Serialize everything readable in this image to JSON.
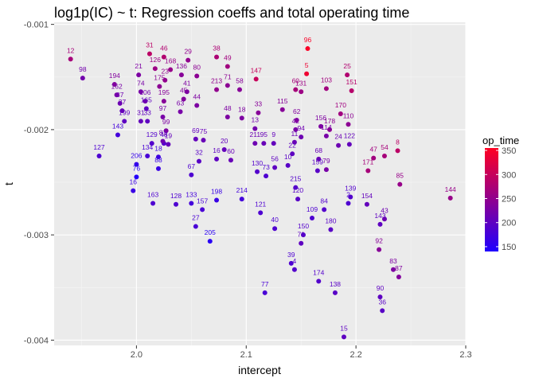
{
  "chart_data": {
    "type": "scatter",
    "title": "log1p(IC) ~ t: Regression coeffs and total operating time",
    "xlabel": "intercept",
    "ylabel": "t",
    "xlim": [
      1.925,
      2.3
    ],
    "ylim": [
      -0.00405,
      -0.00098
    ],
    "x_ticks": [
      2.0,
      2.1,
      2.2,
      2.3
    ],
    "x_tick_labels": [
      "2.0",
      "2.1",
      "2.2",
      "2.3"
    ],
    "y_ticks": [
      -0.004,
      -0.003,
      -0.002,
      -0.001
    ],
    "y_tick_labels": [
      "-0.004",
      "-0.003",
      "-0.002",
      "-0.001"
    ],
    "grid": true,
    "legend": {
      "title": "op_time",
      "position": "right",
      "ticks": [
        150,
        200,
        250,
        300,
        350
      ],
      "range": [
        140,
        355
      ],
      "color_low": "#1f00ff",
      "color_high": "#ff0022"
    },
    "points": [
      {
        "label": "12",
        "x": 1.94,
        "y": -0.00133,
        "c": 270
      },
      {
        "label": "98",
        "x": 1.951,
        "y": -0.00151,
        "c": 220
      },
      {
        "label": "194",
        "x": 1.98,
        "y": -0.00157,
        "c": 235
      },
      {
        "label": "162",
        "x": 1.982,
        "y": -0.00167,
        "c": 225
      },
      {
        "label": "87",
        "x": 1.985,
        "y": -0.00175,
        "c": 215
      },
      {
        "label": "37",
        "x": 1.987,
        "y": -0.00182,
        "c": 210
      },
      {
        "label": "199",
        "x": 1.989,
        "y": -0.00192,
        "c": 200
      },
      {
        "label": "143",
        "x": 1.983,
        "y": -0.00205,
        "c": 175
      },
      {
        "label": "127",
        "x": 1.966,
        "y": -0.00225,
        "c": 185
      },
      {
        "label": "206",
        "x": 2.0,
        "y": -0.00233,
        "c": 160
      },
      {
        "label": "76",
        "x": 2.0,
        "y": -0.00245,
        "c": 145
      },
      {
        "label": "16",
        "x": 1.997,
        "y": -0.00258,
        "c": 165
      },
      {
        "label": "21",
        "x": 2.002,
        "y": -0.00148,
        "c": 230
      },
      {
        "label": "74",
        "x": 2.004,
        "y": -0.00164,
        "c": 225
      },
      {
        "label": "106",
        "x": 2.008,
        "y": -0.00173,
        "c": 220
      },
      {
        "label": "165",
        "x": 2.009,
        "y": -0.0018,
        "c": 200
      },
      {
        "label": "31",
        "x": 2.004,
        "y": -0.00192,
        "c": 205
      },
      {
        "label": "33",
        "x": 2.01,
        "y": -0.00192,
        "c": 200
      },
      {
        "label": "129",
        "x": 2.014,
        "y": -0.00213,
        "c": 190
      },
      {
        "label": "134",
        "x": 2.01,
        "y": -0.00225,
        "c": 180
      },
      {
        "label": "48",
        "x": 2.025,
        "y": -0.00213,
        "c": 190
      },
      {
        "label": "18",
        "x": 2.02,
        "y": -0.00226,
        "c": 170
      },
      {
        "label": "88",
        "x": 2.02,
        "y": -0.00237,
        "c": 165
      },
      {
        "label": "163",
        "x": 2.015,
        "y": -0.0027,
        "c": 185
      },
      {
        "label": "128",
        "x": 2.036,
        "y": -0.00271,
        "c": 185
      },
      {
        "label": "31",
        "x": 2.012,
        "y": -0.00128,
        "c": 290
      },
      {
        "label": "46",
        "x": 2.025,
        "y": -0.00131,
        "c": 280
      },
      {
        "label": "126",
        "x": 2.017,
        "y": -0.00142,
        "c": 260
      },
      {
        "label": "168",
        "x": 2.031,
        "y": -0.00143,
        "c": 255
      },
      {
        "label": "23",
        "x": 2.026,
        "y": -0.00153,
        "c": 250
      },
      {
        "label": "175",
        "x": 2.021,
        "y": -0.00159,
        "c": 245
      },
      {
        "label": "195",
        "x": 2.025,
        "y": -0.00173,
        "c": 240
      },
      {
        "label": "97",
        "x": 2.024,
        "y": -0.00188,
        "c": 225
      },
      {
        "label": "99",
        "x": 2.027,
        "y": -0.00201,
        "c": 230
      },
      {
        "label": "81",
        "x": 2.024,
        "y": -0.00211,
        "c": 215
      },
      {
        "label": "19",
        "x": 2.029,
        "y": -0.00214,
        "c": 205
      },
      {
        "label": "29",
        "x": 2.047,
        "y": -0.00134,
        "c": 250
      },
      {
        "label": "136",
        "x": 2.041,
        "y": -0.00148,
        "c": 240
      },
      {
        "label": "80",
        "x": 2.055,
        "y": -0.00149,
        "c": 245
      },
      {
        "label": "45",
        "x": 2.043,
        "y": -0.00171,
        "c": 235
      },
      {
        "label": "41",
        "x": 2.046,
        "y": -0.00164,
        "c": 230
      },
      {
        "label": "63",
        "x": 2.04,
        "y": -0.00183,
        "c": 225
      },
      {
        "label": "44",
        "x": 2.055,
        "y": -0.00177,
        "c": 230
      },
      {
        "label": "69",
        "x": 2.054,
        "y": -0.00209,
        "c": 205
      },
      {
        "label": "75",
        "x": 2.061,
        "y": -0.0021,
        "c": 210
      },
      {
        "label": "32",
        "x": 2.057,
        "y": -0.0023,
        "c": 195
      },
      {
        "label": "67",
        "x": 2.05,
        "y": -0.00243,
        "c": 185
      },
      {
        "label": "133",
        "x": 2.05,
        "y": -0.0027,
        "c": 175
      },
      {
        "label": "157",
        "x": 2.06,
        "y": -0.00276,
        "c": 180
      },
      {
        "label": "27",
        "x": 2.054,
        "y": -0.00292,
        "c": 180
      },
      {
        "label": "205",
        "x": 2.067,
        "y": -0.00306,
        "c": 150
      },
      {
        "label": "198",
        "x": 2.073,
        "y": -0.00267,
        "c": 165
      },
      {
        "label": "38",
        "x": 2.073,
        "y": -0.00131,
        "c": 275
      },
      {
        "label": "49",
        "x": 2.083,
        "y": -0.0014,
        "c": 265
      },
      {
        "label": "71",
        "x": 2.083,
        "y": -0.00158,
        "c": 245
      },
      {
        "label": "213",
        "x": 2.073,
        "y": -0.00162,
        "c": 250
      },
      {
        "label": "58",
        "x": 2.094,
        "y": -0.00162,
        "c": 240
      },
      {
        "label": "48",
        "x": 2.083,
        "y": -0.00188,
        "c": 230
      },
      {
        "label": "18",
        "x": 2.096,
        "y": -0.00189,
        "c": 230
      },
      {
        "label": "20",
        "x": 2.08,
        "y": -0.00219,
        "c": 205
      },
      {
        "label": "16",
        "x": 2.073,
        "y": -0.00228,
        "c": 200
      },
      {
        "label": "60",
        "x": 2.086,
        "y": -0.00229,
        "c": 210
      },
      {
        "label": "214",
        "x": 2.096,
        "y": -0.00266,
        "c": 175
      },
      {
        "label": "147",
        "x": 2.109,
        "y": -0.00152,
        "c": 300
      },
      {
        "label": "33",
        "x": 2.111,
        "y": -0.00184,
        "c": 240
      },
      {
        "label": "13",
        "x": 2.108,
        "y": -0.00199,
        "c": 220
      },
      {
        "label": "211",
        "x": 2.108,
        "y": -0.00213,
        "c": 215
      },
      {
        "label": "95",
        "x": 2.116,
        "y": -0.00213,
        "c": 210
      },
      {
        "label": "9",
        "x": 2.125,
        "y": -0.00213,
        "c": 205
      },
      {
        "label": "130",
        "x": 2.11,
        "y": -0.0024,
        "c": 190
      },
      {
        "label": "73",
        "x": 2.118,
        "y": -0.00244,
        "c": 185
      },
      {
        "label": "56",
        "x": 2.126,
        "y": -0.00236,
        "c": 200
      },
      {
        "label": "115",
        "x": 2.133,
        "y": -0.00181,
        "c": 240
      },
      {
        "label": "121",
        "x": 2.113,
        "y": -0.00279,
        "c": 185
      },
      {
        "label": "40",
        "x": 2.126,
        "y": -0.00294,
        "c": 185
      },
      {
        "label": "77",
        "x": 2.117,
        "y": -0.00355,
        "c": 180
      },
      {
        "label": "96",
        "x": 2.156,
        "y": -0.00123,
        "c": 350
      },
      {
        "label": "5",
        "x": 2.155,
        "y": -0.00147,
        "c": 340
      },
      {
        "label": "60",
        "x": 2.145,
        "y": -0.00162,
        "c": 270
      },
      {
        "label": "131",
        "x": 2.15,
        "y": -0.00164,
        "c": 260
      },
      {
        "label": "62",
        "x": 2.146,
        "y": -0.00191,
        "c": 235
      },
      {
        "label": "42",
        "x": 2.145,
        "y": -0.002,
        "c": 225
      },
      {
        "label": "94",
        "x": 2.15,
        "y": -0.00207,
        "c": 215
      },
      {
        "label": "11",
        "x": 2.144,
        "y": -0.00212,
        "c": 210
      },
      {
        "label": "22",
        "x": 2.142,
        "y": -0.00223,
        "c": 200
      },
      {
        "label": "10",
        "x": 2.138,
        "y": -0.00234,
        "c": 195
      },
      {
        "label": "215",
        "x": 2.145,
        "y": -0.00255,
        "c": 190
      },
      {
        "label": "120",
        "x": 2.147,
        "y": -0.00266,
        "c": 195
      },
      {
        "label": "150",
        "x": 2.152,
        "y": -0.003,
        "c": 190
      },
      {
        "label": "70",
        "x": 2.15,
        "y": -0.00308,
        "c": 200
      },
      {
        "label": "39",
        "x": 2.141,
        "y": -0.00327,
        "c": 185
      },
      {
        "label": "4",
        "x": 2.144,
        "y": -0.00333,
        "c": 190
      },
      {
        "label": "103",
        "x": 2.173,
        "y": -0.00161,
        "c": 265
      },
      {
        "label": "25",
        "x": 2.192,
        "y": -0.00148,
        "c": 280
      },
      {
        "label": "151",
        "x": 2.196,
        "y": -0.00163,
        "c": 285
      },
      {
        "label": "156",
        "x": 2.168,
        "y": -0.00197,
        "c": 230
      },
      {
        "label": "178",
        "x": 2.176,
        "y": -0.002,
        "c": 245
      },
      {
        "label": "170",
        "x": 2.186,
        "y": -0.00185,
        "c": 265
      },
      {
        "label": "110",
        "x": 2.193,
        "y": -0.00195,
        "c": 245
      },
      {
        "label": "114",
        "x": 2.173,
        "y": -0.00206,
        "c": 225
      },
      {
        "label": "24",
        "x": 2.184,
        "y": -0.00215,
        "c": 215
      },
      {
        "label": "122",
        "x": 2.194,
        "y": -0.00214,
        "c": 205
      },
      {
        "label": "68",
        "x": 2.166,
        "y": -0.00228,
        "c": 210
      },
      {
        "label": "79",
        "x": 2.173,
        "y": -0.00238,
        "c": 225
      },
      {
        "label": "159",
        "x": 2.165,
        "y": -0.00239,
        "c": 195
      },
      {
        "label": "84",
        "x": 2.171,
        "y": -0.00276,
        "c": 190
      },
      {
        "label": "109",
        "x": 2.16,
        "y": -0.00284,
        "c": 185
      },
      {
        "label": "180",
        "x": 2.177,
        "y": -0.00295,
        "c": 195
      },
      {
        "label": "174",
        "x": 2.166,
        "y": -0.00344,
        "c": 190
      },
      {
        "label": "138",
        "x": 2.181,
        "y": -0.00355,
        "c": 195
      },
      {
        "label": "15",
        "x": 2.189,
        "y": -0.00397,
        "c": 200
      },
      {
        "label": "139",
        "x": 2.195,
        "y": -0.00264,
        "c": 190
      },
      {
        "label": "2",
        "x": 2.193,
        "y": -0.0027,
        "c": 185
      },
      {
        "label": "154",
        "x": 2.21,
        "y": -0.00271,
        "c": 205
      },
      {
        "label": "143",
        "x": 2.222,
        "y": -0.0029,
        "c": 200
      },
      {
        "label": "43",
        "x": 2.226,
        "y": -0.00285,
        "c": 215
      },
      {
        "label": "171",
        "x": 2.211,
        "y": -0.00239,
        "c": 270
      },
      {
        "label": "47",
        "x": 2.216,
        "y": -0.00227,
        "c": 265
      },
      {
        "label": "54",
        "x": 2.226,
        "y": -0.00225,
        "c": 270
      },
      {
        "label": "8",
        "x": 2.238,
        "y": -0.0022,
        "c": 290
      },
      {
        "label": "85",
        "x": 2.24,
        "y": -0.00252,
        "c": 255
      },
      {
        "label": "92",
        "x": 2.221,
        "y": -0.00314,
        "c": 240
      },
      {
        "label": "83",
        "x": 2.234,
        "y": -0.00333,
        "c": 230
      },
      {
        "label": "87",
        "x": 2.239,
        "y": -0.0034,
        "c": 235
      },
      {
        "label": "90",
        "x": 2.222,
        "y": -0.00359,
        "c": 200
      },
      {
        "label": "36",
        "x": 2.224,
        "y": -0.00372,
        "c": 195
      },
      {
        "label": "144",
        "x": 2.286,
        "y": -0.00265,
        "c": 255
      }
    ]
  }
}
